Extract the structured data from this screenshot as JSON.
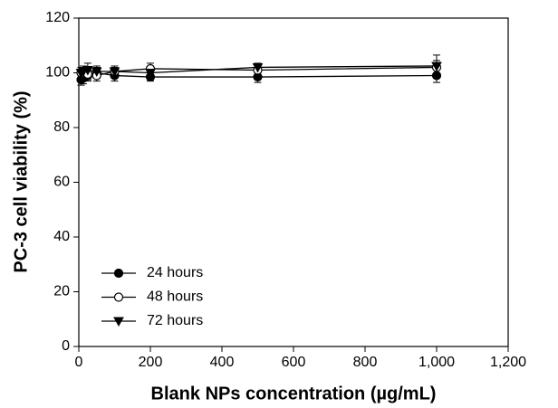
{
  "chart_data": {
    "type": "line",
    "x_label": "Blank NPs concentration (µg/mL)",
    "y_label": "PC-3 cell viability (%)",
    "x": [
      6.25,
      12.5,
      25,
      50,
      100,
      200,
      500,
      1000
    ],
    "series": [
      {
        "name": "24 hours",
        "color": "#000000",
        "marker": "circle-filled",
        "values": [
          97.5,
          98,
          99,
          100,
          99,
          98.5,
          98.5,
          99
        ],
        "errors": [
          2,
          2,
          2,
          2,
          2,
          1.5,
          2,
          2.5
        ]
      },
      {
        "name": "48 hours",
        "color": "#000000",
        "marker": "circle-open",
        "values": [
          100,
          100,
          99.5,
          99,
          100.5,
          101.5,
          101,
          102
        ],
        "errors": [
          2,
          2.5,
          2,
          2,
          1.5,
          2,
          2,
          2.5
        ]
      },
      {
        "name": "72 hours",
        "color": "#000000",
        "marker": "triangle-down",
        "values": [
          100,
          100.5,
          101,
          100.5,
          100.5,
          100,
          102,
          102.5
        ],
        "errors": [
          2,
          2,
          2.5,
          2,
          2,
          2,
          1.5,
          4
        ]
      }
    ],
    "xlim": [
      0,
      1200
    ],
    "xticks": [
      0,
      200,
      400,
      600,
      800,
      {
        "value": 1000,
        "label": "1,000"
      },
      {
        "value": 1200,
        "label": "1,200"
      }
    ],
    "ylim": [
      0,
      120
    ],
    "yticks": [
      0,
      20,
      40,
      60,
      80,
      100,
      120
    ],
    "legend": "lower-left"
  }
}
